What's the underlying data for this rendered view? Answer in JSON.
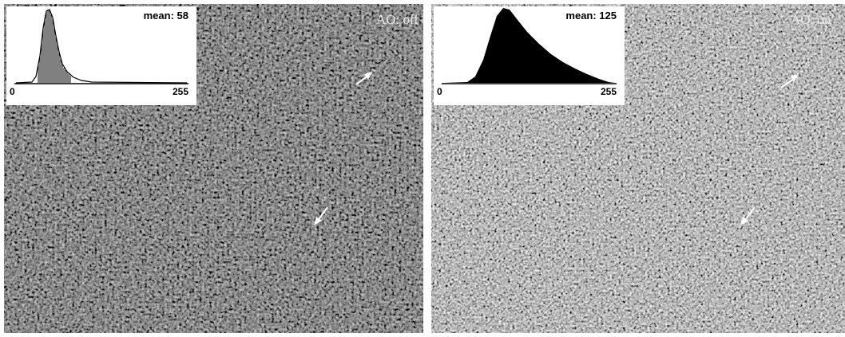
{
  "panels": [
    {
      "label": "AO: off",
      "histogram": {
        "mean_label": "mean: 58",
        "axis_min": "0",
        "axis_max": "255"
      }
    },
    {
      "label": "AO: on",
      "histogram": {
        "mean_label": "mean: 125",
        "axis_min": "0",
        "axis_max": "255"
      }
    }
  ]
}
